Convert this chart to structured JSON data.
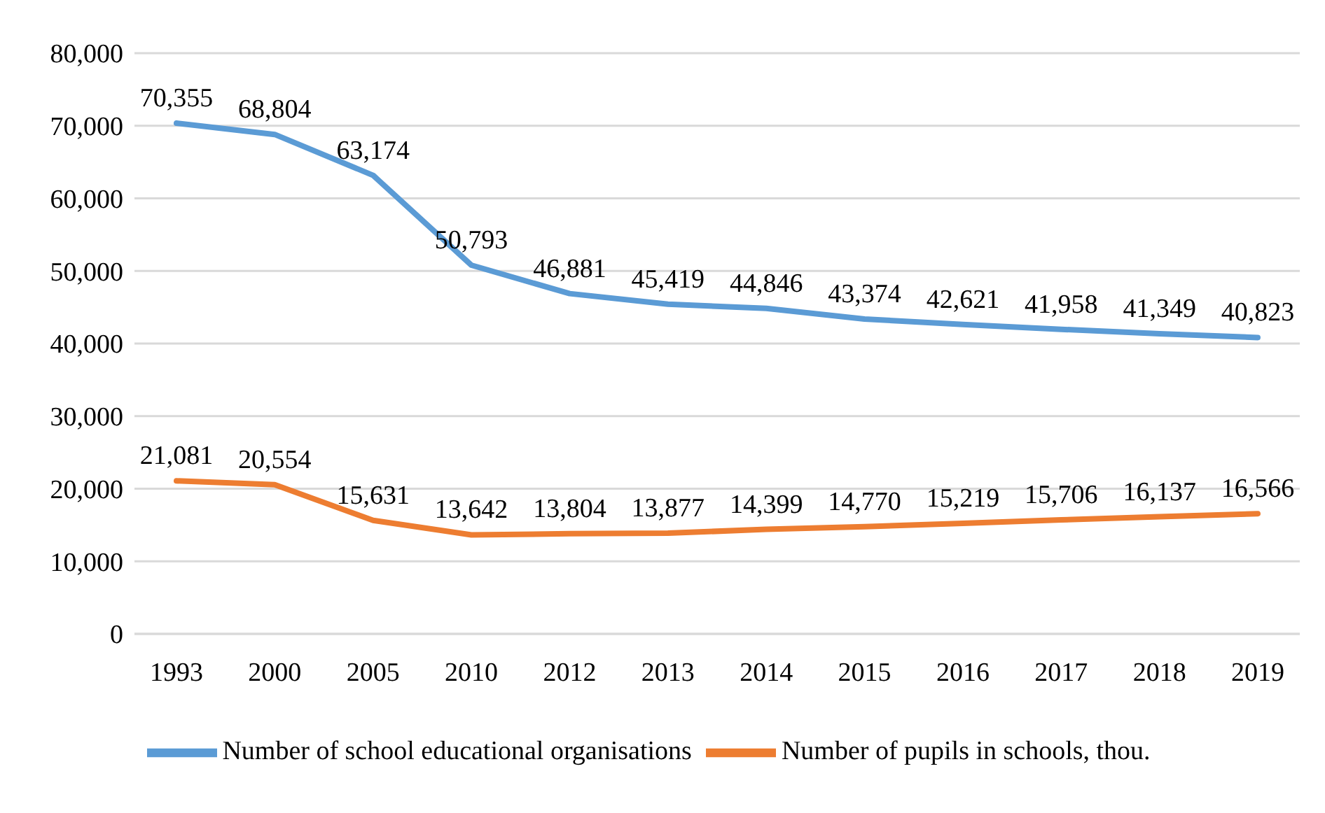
{
  "chart_data": {
    "type": "line",
    "categories": [
      "1993",
      "2000",
      "2005",
      "2010",
      "2012",
      "2013",
      "2014",
      "2015",
      "2016",
      "2017",
      "2018",
      "2019"
    ],
    "series": [
      {
        "name": "Number of school educational organisations",
        "color": "#5b9bd5",
        "values": [
          70355,
          68804,
          63174,
          50793,
          46881,
          45419,
          44846,
          43374,
          42621,
          41958,
          41349,
          40823
        ],
        "value_labels": [
          "70,355",
          "68,804",
          "63,174",
          "50,793",
          "46,881",
          "45,419",
          "44,846",
          "43,374",
          "42,621",
          "41,958",
          "41,349",
          "40,823"
        ]
      },
      {
        "name": "Number of pupils in schools, thou.",
        "color": "#ed7d31",
        "values": [
          21081,
          20554,
          15631,
          13642,
          13804,
          13877,
          14399,
          14770,
          15219,
          15706,
          16137,
          16566
        ],
        "value_labels": [
          "21,081",
          "20,554",
          "15,631",
          "13,642",
          "13,804",
          "13,877",
          "14,399",
          "14,770",
          "15,219",
          "15,706",
          "16,137",
          "16,566"
        ]
      }
    ],
    "ylim": [
      0,
      80000
    ],
    "yticks": [
      {
        "value": 0,
        "label": "0"
      },
      {
        "value": 10000,
        "label": "10,000"
      },
      {
        "value": 20000,
        "label": "20,000"
      },
      {
        "value": 30000,
        "label": "30,000"
      },
      {
        "value": 40000,
        "label": "40,000"
      },
      {
        "value": 50000,
        "label": "50,000"
      },
      {
        "value": 60000,
        "label": "60,000"
      },
      {
        "value": 70000,
        "label": "70,000"
      },
      {
        "value": 80000,
        "label": "80,000"
      }
    ],
    "grid": "y",
    "legend": "bottom",
    "marker": "none",
    "line_style": "solid"
  }
}
